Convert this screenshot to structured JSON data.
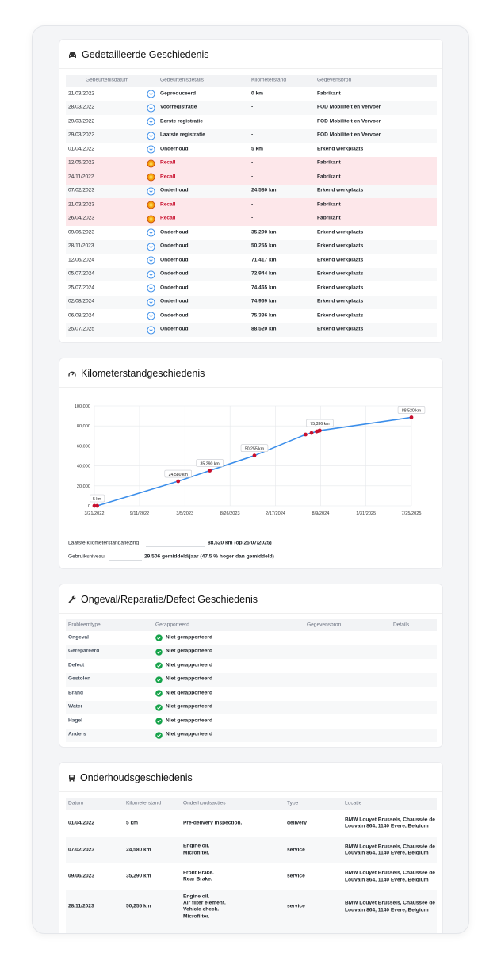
{
  "history": {
    "title": "Gedetailleerde Geschiedenis",
    "columns": [
      "Gebeurtenisdatum",
      "Gebeurtenisdetails",
      "Kilometerstand",
      "Gegevensbron"
    ],
    "rows": [
      {
        "date": "21/03/2022",
        "event": "Geproduceerd",
        "km": "0 km",
        "source": "Fabrikant",
        "recall": false
      },
      {
        "date": "28/03/2022",
        "event": "Voorregistratie",
        "km": "-",
        "source": "FOD Mobiliteit en Vervoer",
        "recall": false
      },
      {
        "date": "29/03/2022",
        "event": "Eerste registratie",
        "km": "-",
        "source": "FOD Mobiliteit en Vervoer",
        "recall": false
      },
      {
        "date": "29/03/2022",
        "event": "Laatste registratie",
        "km": "-",
        "source": "FOD Mobiliteit en Vervoer",
        "recall": false
      },
      {
        "date": "01/04/2022",
        "event": "Onderhoud",
        "km": "5 km",
        "source": "Erkend werkplaats",
        "recall": false
      },
      {
        "date": "12/05/2022",
        "event": "Recall",
        "km": "-",
        "source": "Fabrikant",
        "recall": true
      },
      {
        "date": "24/11/2022",
        "event": "Recall",
        "km": "-",
        "source": "Fabrikant",
        "recall": true
      },
      {
        "date": "07/02/2023",
        "event": "Onderhoud",
        "km": "24,580 km",
        "source": "Erkend werkplaats",
        "recall": false
      },
      {
        "date": "21/03/2023",
        "event": "Recall",
        "km": "-",
        "source": "Fabrikant",
        "recall": true
      },
      {
        "date": "26/04/2023",
        "event": "Recall",
        "km": "-",
        "source": "Fabrikant",
        "recall": true
      },
      {
        "date": "09/06/2023",
        "event": "Onderhoud",
        "km": "35,290 km",
        "source": "Erkend werkplaats",
        "recall": false
      },
      {
        "date": "28/11/2023",
        "event": "Onderhoud",
        "km": "50,255 km",
        "source": "Erkend werkplaats",
        "recall": false
      },
      {
        "date": "12/06/2024",
        "event": "Onderhoud",
        "km": "71,417 km",
        "source": "Erkend werkplaats",
        "recall": false
      },
      {
        "date": "05/07/2024",
        "event": "Onderhoud",
        "km": "72,944 km",
        "source": "Erkend werkplaats",
        "recall": false
      },
      {
        "date": "25/07/2024",
        "event": "Onderhoud",
        "km": "74,465 km",
        "source": "Erkend werkplaats",
        "recall": false
      },
      {
        "date": "02/08/2024",
        "event": "Onderhoud",
        "km": "74,969 km",
        "source": "Erkend werkplaats",
        "recall": false
      },
      {
        "date": "06/08/2024",
        "event": "Onderhoud",
        "km": "75,336 km",
        "source": "Erkend werkplaats",
        "recall": false
      },
      {
        "date": "25/07/2025",
        "event": "Onderhoud",
        "km": "88,520 km",
        "source": "Erkend werkplaats",
        "recall": false
      }
    ]
  },
  "mileage": {
    "title": "Kilometerstandgeschiedenis",
    "chart_data": {
      "type": "line",
      "x": [
        "3/21/2022",
        "4/1/2022",
        "2/7/2023",
        "6/9/2023",
        "11/28/2023",
        "6/12/2024",
        "7/5/2024",
        "7/25/2024",
        "8/2/2024",
        "8/6/2024",
        "7/25/2025"
      ],
      "series": [
        {
          "color": "#3b8eea",
          "marker_color": "#c8102e",
          "values": [
            0,
            5,
            24580,
            35290,
            50255,
            71417,
            72944,
            74465,
            74969,
            75336,
            88520
          ],
          "value_labels": [
            null,
            "5 km",
            "24,580 km",
            "35,290 km",
            "50,255 km",
            null,
            null,
            null,
            null,
            "75,336 km",
            "88,520 km"
          ]
        }
      ],
      "xlim": [
        "3/21/2022",
        "7/25/2025"
      ],
      "xticks": [
        "3/21/2022",
        "9/11/2022",
        "3/5/2023",
        "8/26/2023",
        "2/17/2024",
        "8/9/2024",
        "1/31/2025",
        "7/25/2025"
      ],
      "ylim": [
        0,
        100000
      ],
      "yticks": [
        0,
        {
          "value": 20000,
          "label": "20,000"
        },
        {
          "value": 40000,
          "label": "40,000"
        },
        {
          "value": 60000,
          "label": "60,000"
        },
        {
          "value": 80000,
          "label": "80,000"
        },
        {
          "value": 100000,
          "label": "100,000"
        }
      ],
      "grid": true
    },
    "stats": [
      {
        "label": "Laatste kilometerstandaflezing",
        "value": "88,520 km (op 25/07/2025)"
      },
      {
        "label": "Gebruiksniveau",
        "value": "29,506 gemiddeld/jaar (47.5 % hoger dan gemiddeld)"
      }
    ]
  },
  "damage": {
    "title": "Ongeval/Reparatie/Defect Geschiedenis",
    "columns": [
      "Probleemtype",
      "Gerapporteerd",
      "Gegevensbron",
      "Details"
    ],
    "rows": [
      {
        "type": "Ongeval",
        "reported": "Niet gerapporteerd"
      },
      {
        "type": "Gerepareerd",
        "reported": "Niet gerapporteerd"
      },
      {
        "type": "Defect",
        "reported": "Niet gerapporteerd"
      },
      {
        "type": "Gestolen",
        "reported": "Niet gerapporteerd"
      },
      {
        "type": "Brand",
        "reported": "Niet gerapporteerd"
      },
      {
        "type": "Water",
        "reported": "Niet gerapporteerd"
      },
      {
        "type": "Hagel",
        "reported": "Niet gerapporteerd"
      },
      {
        "type": "Anders",
        "reported": "Niet gerapporteerd"
      }
    ]
  },
  "maintenance": {
    "title": "Onderhoudsgeschiedenis",
    "columns": [
      "Datum",
      "Kilometerstand",
      "Onderhoudsacties",
      "Type",
      "Locatie"
    ],
    "rows": [
      {
        "date": "01/04/2022",
        "km": "5 km",
        "actions": [
          "Pre-delivery inspection."
        ],
        "type": "delivery",
        "location": "BMW Louyet Brussels, Chaussée de Louvain 864, 1140 Evere, Belgium"
      },
      {
        "date": "07/02/2023",
        "km": "24,580 km",
        "actions": [
          "Engine oil.",
          "Microfilter."
        ],
        "type": "service",
        "location": "BMW Louyet Brussels, Chaussée de Louvain 864, 1140 Evere, Belgium"
      },
      {
        "date": "09/06/2023",
        "km": "35,290 km",
        "actions": [
          "Front Brake.",
          "Rear Brake."
        ],
        "type": "service",
        "location": "BMW Louyet Brussels, Chaussée de Louvain 864, 1140 Evere, Belgium"
      },
      {
        "date": "28/11/2023",
        "km": "50,255 km",
        "actions": [
          "Engine oil.",
          "Air filter element.",
          "Vehicle check.",
          "Microfilter."
        ],
        "type": "service",
        "location": "BMW Louyet Brussels, Chaussée de Louvain 864, 1140 Evere, Belgium"
      }
    ]
  }
}
